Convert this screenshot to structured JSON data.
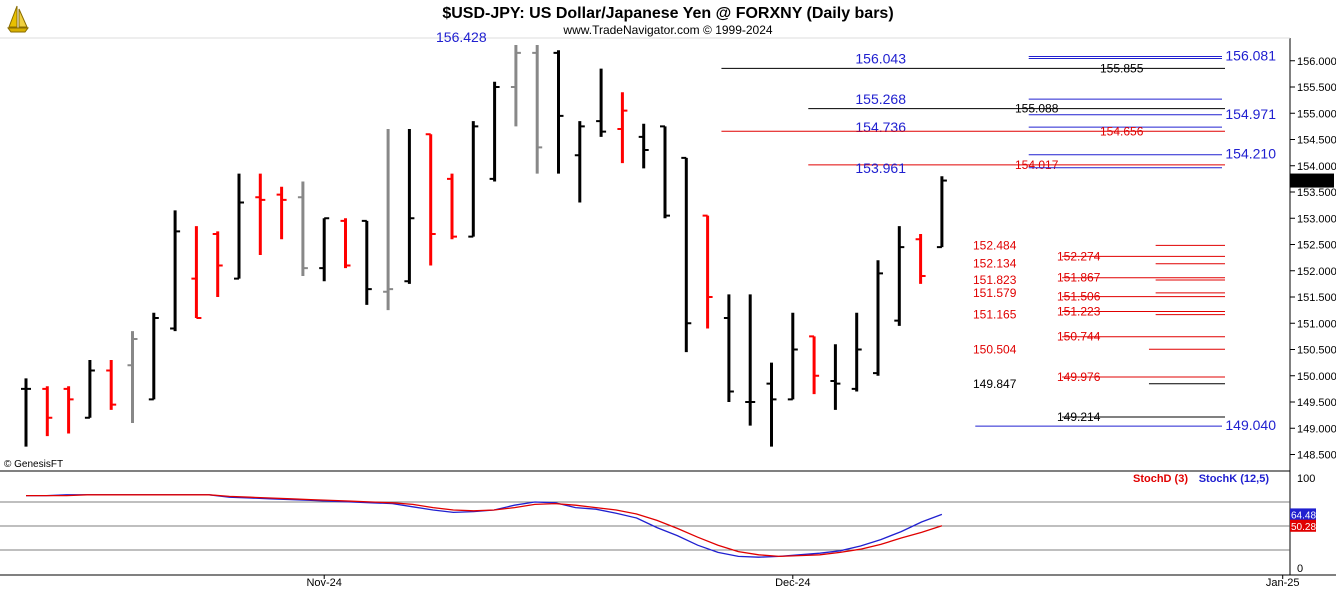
{
  "header": {
    "title": "$USD-JPY:  US Dollar/Japanese Yen @ FORXNY  (Daily bars)",
    "subtitle": "www.TradeNavigator.com © 1999-2024",
    "watermark": "© GenesisFT",
    "logo_icon": "sailboat-logo-icon"
  },
  "colors": {
    "up": "#000000",
    "down": "#ff0000",
    "gray": "#888888",
    "blue": "#2020d0",
    "red": "#e00000",
    "stochK": "#2020d0",
    "stochD": "#e00000"
  },
  "chart_data": {
    "type": "ohlc",
    "title": "$USD-JPY:  US Dollar/Japanese Yen @ FORXNY  (Daily bars)",
    "ylim": [
      148.3,
      156.3
    ],
    "y_ticks": [
      "156.000",
      "155.500",
      "155.000",
      "154.500",
      "154.000",
      "153.500",
      "153.000",
      "152.500",
      "152.000",
      "151.500",
      "151.000",
      "150.500",
      "150.000",
      "149.500",
      "149.000",
      "148.500"
    ],
    "x_ticks": [
      {
        "label": "Nov-24",
        "index": 14
      },
      {
        "label": "Dec-24",
        "index": 36
      },
      {
        "label": "Jan-25",
        "index": 59
      }
    ],
    "last_price_label": "153.718",
    "top_label": "156.428",
    "bars": [
      {
        "o": 149.75,
        "h": 149.95,
        "l": 148.65,
        "c": 149.75,
        "t": "up"
      },
      {
        "o": 149.75,
        "h": 149.8,
        "l": 148.85,
        "c": 149.2,
        "t": "down"
      },
      {
        "o": 149.75,
        "h": 149.8,
        "l": 148.9,
        "c": 149.55,
        "t": "down"
      },
      {
        "o": 149.2,
        "h": 150.3,
        "l": 149.2,
        "c": 150.1,
        "t": "up"
      },
      {
        "o": 150.1,
        "h": 150.3,
        "l": 149.35,
        "c": 149.45,
        "t": "down"
      },
      {
        "o": 150.2,
        "h": 150.85,
        "l": 149.1,
        "c": 150.7,
        "t": "gray"
      },
      {
        "o": 149.55,
        "h": 151.2,
        "l": 149.55,
        "c": 151.1,
        "t": "up"
      },
      {
        "o": 150.9,
        "h": 153.15,
        "l": 150.85,
        "c": 152.75,
        "t": "up"
      },
      {
        "o": 151.85,
        "h": 152.85,
        "l": 151.1,
        "c": 151.1,
        "t": "down"
      },
      {
        "o": 152.7,
        "h": 152.75,
        "l": 151.5,
        "c": 152.1,
        "t": "down"
      },
      {
        "o": 151.85,
        "h": 153.85,
        "l": 151.85,
        "c": 153.3,
        "t": "up"
      },
      {
        "o": 153.4,
        "h": 153.85,
        "l": 152.3,
        "c": 153.35,
        "t": "down"
      },
      {
        "o": 153.45,
        "h": 153.6,
        "l": 152.6,
        "c": 153.35,
        "t": "down"
      },
      {
        "o": 153.4,
        "h": 153.7,
        "l": 151.9,
        "c": 152.05,
        "t": "gray"
      },
      {
        "o": 152.05,
        "h": 153,
        "l": 151.8,
        "c": 153,
        "t": "up"
      },
      {
        "o": 152.95,
        "h": 153,
        "l": 152.05,
        "c": 152.1,
        "t": "down"
      },
      {
        "o": 152.95,
        "h": 152.95,
        "l": 151.35,
        "c": 151.65,
        "t": "up"
      },
      {
        "o": 151.6,
        "h": 154.7,
        "l": 151.25,
        "c": 151.65,
        "t": "gray"
      },
      {
        "o": 151.8,
        "h": 154.7,
        "l": 151.75,
        "c": 153.0,
        "t": "up"
      },
      {
        "o": 154.6,
        "h": 154.6,
        "l": 152.1,
        "c": 152.7,
        "t": "down"
      },
      {
        "o": 153.75,
        "h": 153.85,
        "l": 152.6,
        "c": 152.65,
        "t": "down"
      },
      {
        "o": 152.65,
        "h": 154.85,
        "l": 152.65,
        "c": 154.75,
        "t": "up"
      },
      {
        "o": 153.75,
        "h": 155.6,
        "l": 153.7,
        "c": 155.5,
        "t": "up"
      },
      {
        "o": 155.5,
        "h": 156.3,
        "l": 154.75,
        "c": 156.15,
        "t": "gray"
      },
      {
        "o": 156.15,
        "h": 156.3,
        "l": 153.85,
        "c": 154.35,
        "t": "gray"
      },
      {
        "o": 156.15,
        "h": 156.2,
        "l": 153.85,
        "c": 154.95,
        "t": "up"
      },
      {
        "o": 154.2,
        "h": 154.85,
        "l": 153.3,
        "c": 154.75,
        "t": "up"
      },
      {
        "o": 154.85,
        "h": 155.85,
        "l": 154.55,
        "c": 154.65,
        "t": "up"
      },
      {
        "o": 154.7,
        "h": 155.4,
        "l": 154.05,
        "c": 155.05,
        "t": "down"
      },
      {
        "o": 154.55,
        "h": 154.8,
        "l": 153.95,
        "c": 154.3,
        "t": "up"
      },
      {
        "o": 154.75,
        "h": 154.75,
        "l": 153.0,
        "c": 153.05,
        "t": "up"
      },
      {
        "o": 154.15,
        "h": 154.15,
        "l": 150.45,
        "c": 151.0,
        "t": "up"
      },
      {
        "o": 153.05,
        "h": 153.05,
        "l": 150.9,
        "c": 151.5,
        "t": "down"
      },
      {
        "o": 151.1,
        "h": 151.55,
        "l": 149.5,
        "c": 149.7,
        "t": "up"
      },
      {
        "o": 149.5,
        "h": 151.55,
        "l": 149.05,
        "c": 149.5,
        "t": "up"
      },
      {
        "o": 149.85,
        "h": 150.25,
        "l": 148.65,
        "c": 149.55,
        "t": "up"
      },
      {
        "o": 149.55,
        "h": 151.2,
        "l": 149.55,
        "c": 150.5,
        "t": "up"
      },
      {
        "o": 150.75,
        "h": 150.75,
        "l": 149.65,
        "c": 150.0,
        "t": "down"
      },
      {
        "o": 149.9,
        "h": 150.6,
        "l": 149.35,
        "c": 149.85,
        "t": "up"
      },
      {
        "o": 149.75,
        "h": 151.2,
        "l": 149.7,
        "c": 150.5,
        "t": "up"
      },
      {
        "o": 150.05,
        "h": 152.2,
        "l": 150.0,
        "c": 151.95,
        "t": "up"
      },
      {
        "o": 151.05,
        "h": 152.85,
        "l": 150.95,
        "c": 152.45,
        "t": "up"
      },
      {
        "o": 152.6,
        "h": 152.7,
        "l": 151.75,
        "c": 151.9,
        "t": "down"
      },
      {
        "o": 152.45,
        "h": 153.8,
        "l": 152.45,
        "c": 153.718,
        "t": "up"
      }
    ],
    "levels": [
      {
        "value": 156.081,
        "label": "156.081",
        "color": "blue",
        "side": "right",
        "big": true,
        "x0": 0.77
      },
      {
        "value": 156.043,
        "label": "156.043",
        "color": "blue",
        "side": "leftbig",
        "big": true,
        "x0": 0.77
      },
      {
        "value": 155.855,
        "label": "155.855",
        "color": "black",
        "side": "mid",
        "x0": 0.54
      },
      {
        "value": 155.268,
        "label": "155.268",
        "color": "blue",
        "side": "leftbig",
        "big": true,
        "x0": 0.77
      },
      {
        "value": 155.088,
        "label": "155.088",
        "color": "black",
        "side": "mid2",
        "x0": 0.605
      },
      {
        "value": 154.971,
        "label": "154.971",
        "color": "blue",
        "side": "right",
        "big": true,
        "x0": 0.77
      },
      {
        "value": 154.736,
        "label": "154.736",
        "color": "blue",
        "side": "leftbig",
        "big": true,
        "x0": 0.77
      },
      {
        "value": 154.656,
        "label": "154.656",
        "color": "red",
        "side": "mid",
        "x0": 0.54
      },
      {
        "value": 154.21,
        "label": "154.210",
        "color": "blue",
        "side": "right",
        "big": true,
        "x0": 0.77
      },
      {
        "value": 154.017,
        "label": "154.017",
        "color": "red",
        "side": "mid2",
        "x0": 0.605
      },
      {
        "value": 153.961,
        "label": "153.961",
        "color": "blue",
        "side": "leftbig",
        "big": true,
        "x0": 0.77
      },
      {
        "value": 152.484,
        "label": "152.484",
        "color": "red",
        "side": "near",
        "x0": 0.865
      },
      {
        "value": 152.274,
        "label": "152.274",
        "color": "red",
        "side": "far",
        "x0": 0.795
      },
      {
        "value": 152.134,
        "label": "152.134",
        "color": "red",
        "side": "near",
        "x0": 0.865
      },
      {
        "value": 151.867,
        "label": "151.867",
        "color": "red",
        "side": "far",
        "x0": 0.795
      },
      {
        "value": 151.823,
        "label": "151.823",
        "color": "red",
        "side": "near",
        "x0": 0.865
      },
      {
        "value": 151.579,
        "label": "151.579",
        "color": "red",
        "side": "near",
        "x0": 0.865
      },
      {
        "value": 151.506,
        "label": "151.506",
        "color": "red",
        "side": "far",
        "x0": 0.795
      },
      {
        "value": 151.223,
        "label": "151.223",
        "color": "red",
        "side": "far",
        "x0": 0.795
      },
      {
        "value": 151.165,
        "label": "151.165",
        "color": "red",
        "side": "near",
        "x0": 0.865
      },
      {
        "value": 150.744,
        "label": "150.744",
        "color": "red",
        "side": "far",
        "x0": 0.795
      },
      {
        "value": 150.504,
        "label": "150.504",
        "color": "red",
        "side": "near",
        "x0": 0.86
      },
      {
        "value": 149.976,
        "label": "149.976",
        "color": "red",
        "side": "far",
        "x0": 0.795
      },
      {
        "value": 149.847,
        "label": "149.847",
        "color": "black",
        "side": "near",
        "x0": 0.86
      },
      {
        "value": 149.214,
        "label": "149.214",
        "color": "black",
        "side": "far",
        "x0": 0.795
      },
      {
        "value": 149.04,
        "label": "149.040",
        "color": "blue",
        "side": "right",
        "big": true,
        "x0": 0.73
      }
    ],
    "stochastic": {
      "ylim": [
        0,
        100
      ],
      "y_ticks": [
        "100",
        "0"
      ],
      "ref_levels": [
        80,
        50,
        20
      ],
      "series": [
        {
          "name": "StochK (12,5)",
          "color": "stochK",
          "last": "64.48",
          "values": [
            88,
            88,
            89,
            89,
            89,
            89,
            89,
            89,
            89,
            89,
            86,
            85,
            84,
            83,
            82,
            81,
            80,
            79,
            78,
            74,
            70,
            67,
            68,
            70,
            76,
            80,
            79,
            73,
            71,
            66,
            60,
            48,
            38,
            26,
            17,
            12,
            11,
            12,
            14,
            16,
            19,
            25,
            33,
            43,
            55,
            64.48
          ]
        },
        {
          "name": "StochD (3)",
          "color": "stochD",
          "last": "50.28",
          "values": [
            88,
            88,
            88,
            89,
            89,
            89,
            89,
            89,
            89,
            89,
            87,
            86,
            85,
            84,
            83,
            82,
            81,
            80,
            79,
            77,
            73,
            70,
            69,
            70,
            73,
            77,
            78,
            76,
            73,
            70,
            65,
            57,
            47,
            36,
            26,
            18,
            14,
            12,
            13,
            14,
            17,
            21,
            27,
            35,
            42,
            50.28
          ]
        }
      ]
    }
  },
  "legend": {
    "stochD": "StochD (3)",
    "stochK": "StochK (12,5)"
  }
}
